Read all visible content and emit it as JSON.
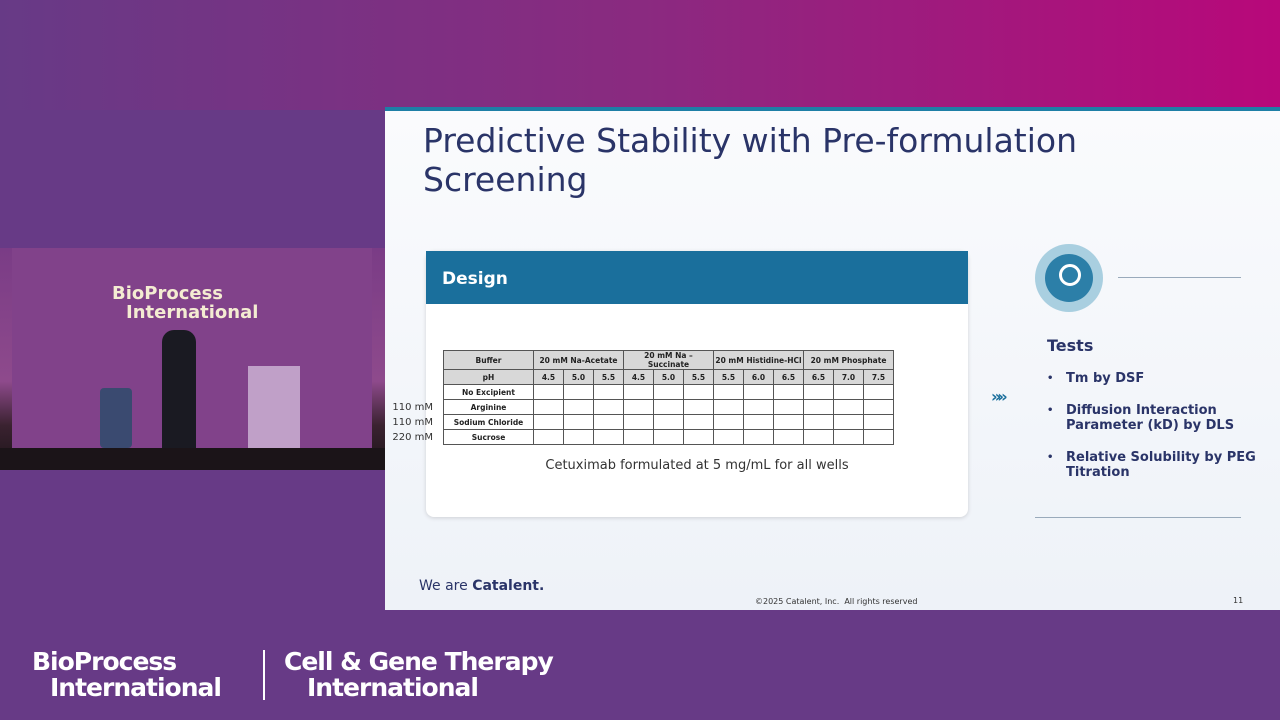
{
  "stage_video": {
    "sign": [
      "BioProcess",
      "International"
    ]
  },
  "slide": {
    "title": "Predictive Stability with Pre-formulation Screening",
    "design": {
      "heading": "Design",
      "table": {
        "header": [
          "Buffer",
          "20 mM Na-Acetate",
          "20 mM Na – Succinate",
          "20 mM Histidine-HCl",
          "20 mM Phosphate"
        ],
        "ph_row": [
          "pH",
          "4.5",
          "5.0",
          "5.5",
          "4.5",
          "5.0",
          "5.5",
          "5.5",
          "6.0",
          "6.5",
          "6.5",
          "7.0",
          "7.5"
        ],
        "rows": [
          {
            "label": "No Excipient"
          },
          {
            "label": "Arginine",
            "concentration": "110 mM"
          },
          {
            "label": "Sodium Chloride",
            "concentration": "110 mM"
          },
          {
            "label": "Sucrose",
            "concentration": "220 mM"
          }
        ]
      },
      "note": "Cetuximab formulated at 5 mg/mL for all wells"
    },
    "tests": {
      "heading": "Tests",
      "items": [
        "Tm by DSF",
        "Diffusion Interaction Parameter (kD) by DLS",
        "Relative Solubility by PEG Titration"
      ]
    },
    "brand": {
      "prefix": "We are",
      "name": "Catalent."
    },
    "copyright": "©2025 Catalent, Inc.  All rights reserved",
    "page": "11"
  },
  "footer": {
    "logos": [
      {
        "line1": "BioProcess",
        "line2": "International"
      },
      {
        "line1": "Cell & Gene Therapy",
        "line2": "International"
      }
    ]
  }
}
